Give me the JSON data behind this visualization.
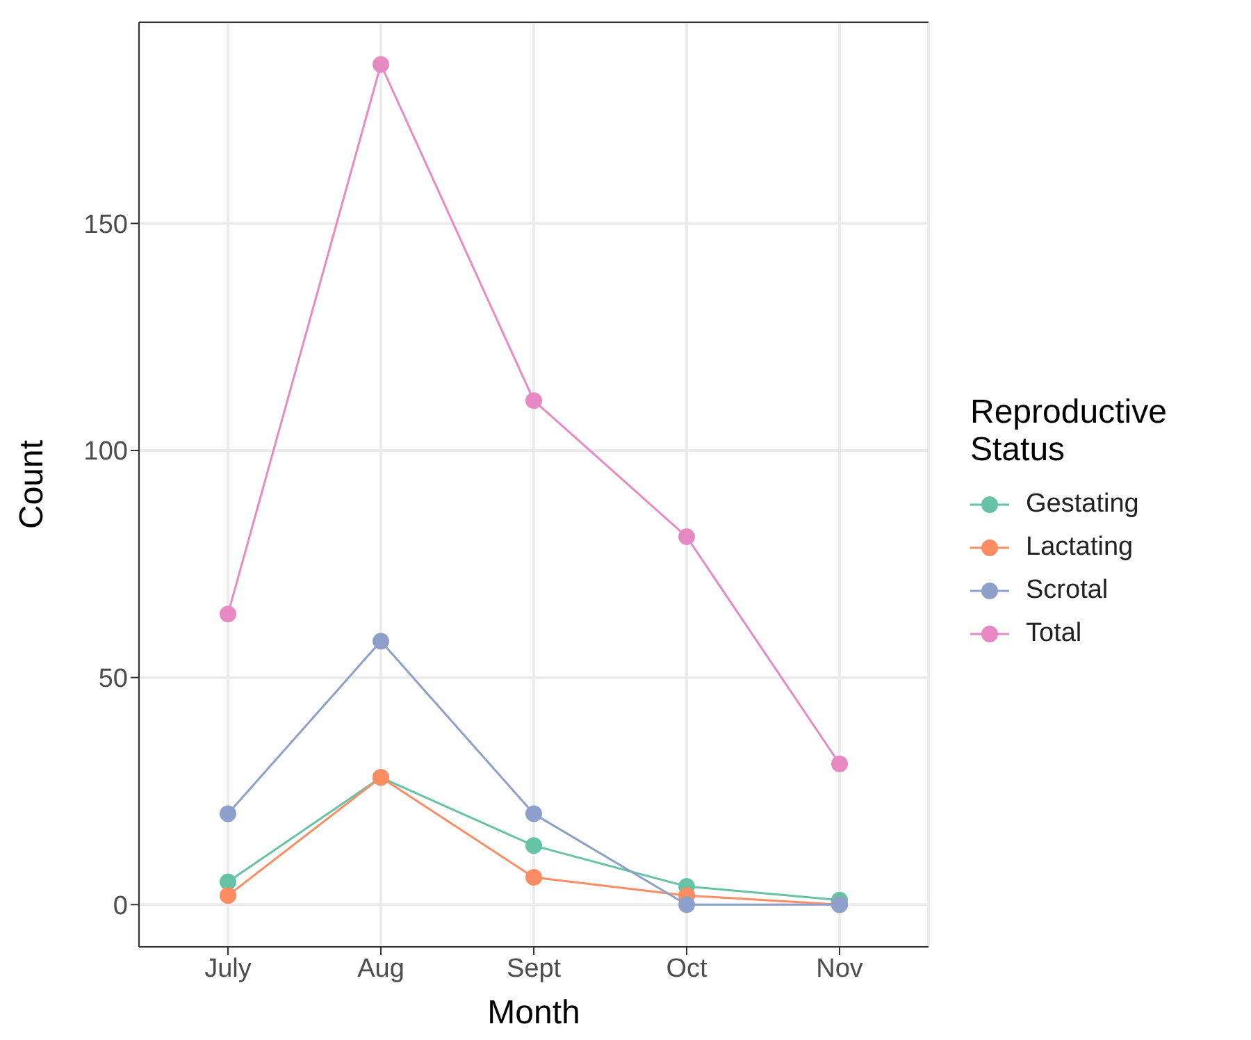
{
  "chart_data": {
    "type": "line",
    "xlabel": "Month",
    "ylabel": "Count",
    "legend_title": "Reproductive Status",
    "categories": [
      "July",
      "Aug",
      "Sept",
      "Oct",
      "Nov"
    ],
    "series": [
      {
        "name": "Gestating",
        "color": "#66c2a5",
        "values": [
          5,
          28,
          13,
          4,
          1
        ]
      },
      {
        "name": "Lactating",
        "color": "#fc8d62",
        "values": [
          2,
          28,
          6,
          2,
          0
        ]
      },
      {
        "name": "Scrotal",
        "color": "#8da0cb",
        "values": [
          20,
          58,
          20,
          0,
          0
        ]
      },
      {
        "name": "Total",
        "color": "#e78ac3",
        "values": [
          64,
          185,
          111,
          81,
          31
        ]
      }
    ],
    "ylim": [
      -9.3,
      194.3
    ],
    "yticks": [
      0,
      50,
      100,
      150
    ],
    "grid": true,
    "legend": "right",
    "marker": "circle",
    "line_style": "solid"
  }
}
